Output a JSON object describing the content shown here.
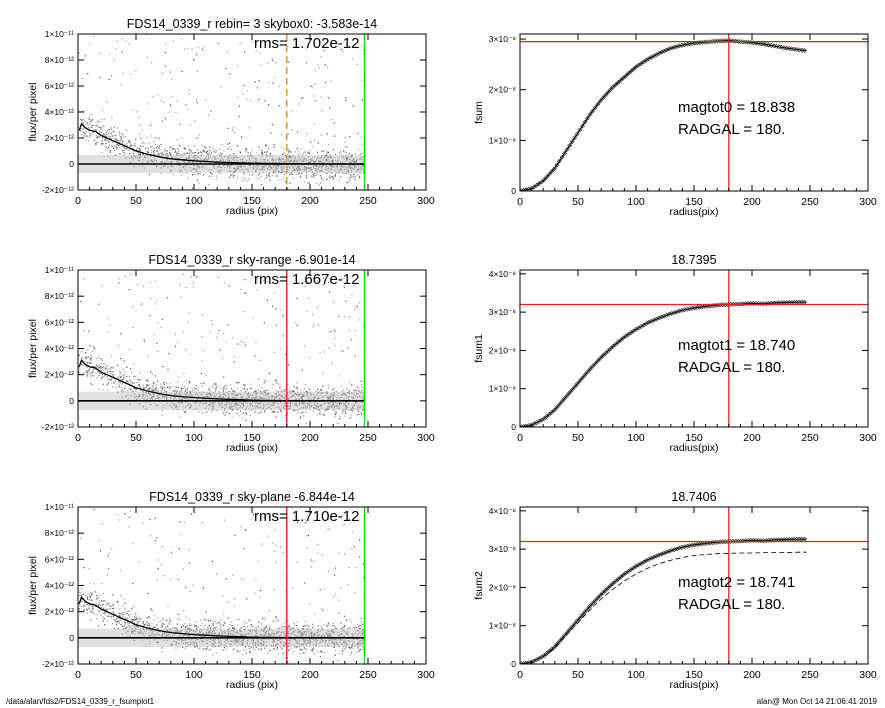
{
  "footer": {
    "left": "/data/alan/fds2/FDS14_0339_r_fsumplot1",
    "right": "alan@  Mon Oct 14 21:06:41 2019"
  },
  "chart_data": [
    {
      "type": "scatter",
      "title": "FDS14_0339_r rebin= 3    skybox0: -3.583e-14",
      "annotation": "rms= 1.702e-12",
      "xlabel": "radius (pix)",
      "ylabel": "flux/per pixel",
      "xlim": [
        0,
        300
      ],
      "ylim": [
        -2e-12,
        1e-11
      ],
      "xticks": [
        "0",
        "50",
        "100",
        "150",
        "200",
        "250",
        "300"
      ],
      "yticks": [
        "1×10⁻¹¹",
        "8×10⁻¹²",
        "6×10⁻¹²",
        "4×10⁻¹²",
        "2×10⁻¹²",
        "0",
        "-2×10⁻¹²"
      ],
      "vlines": [
        {
          "x": 180,
          "color": "#e8902a",
          "style": "dashed"
        },
        {
          "x": 247,
          "color": "#22cc22",
          "style": "solid"
        }
      ],
      "profile": [
        [
          1,
          2.6e-12
        ],
        [
          3,
          3.1e-12
        ],
        [
          6,
          2.8e-12
        ],
        [
          10,
          2.6e-12
        ],
        [
          15,
          2.5e-12
        ],
        [
          20,
          2.2e-12
        ],
        [
          30,
          1.8e-12
        ],
        [
          40,
          1.4e-12
        ],
        [
          50,
          1e-12
        ],
        [
          60,
          7.5e-13
        ],
        [
          70,
          5.5e-13
        ],
        [
          80,
          4e-13
        ],
        [
          100,
          2.5e-13
        ],
        [
          120,
          1.5e-13
        ],
        [
          150,
          5e-14
        ],
        [
          180,
          2e-14
        ],
        [
          220,
          0.0
        ],
        [
          247,
          0.0
        ]
      ]
    },
    {
      "type": "line",
      "title": "",
      "annotation_lines": [
        "magtot0 =  18.838",
        "RADGAL =    180."
      ],
      "xlabel": "radius(pix)",
      "ylabel": "fsum",
      "xlim": [
        0,
        300
      ],
      "ylim": [
        0,
        3.1e-08
      ],
      "xticks": [
        "0",
        "50",
        "100",
        "150",
        "200",
        "250",
        "300"
      ],
      "yticks": [
        "3×10⁻⁸",
        "2×10⁻⁸",
        "1×10⁻⁸",
        "0"
      ],
      "hline": 2.95e-08,
      "vline": 180,
      "curve": [
        [
          0,
          0
        ],
        [
          10,
          5e-10
        ],
        [
          20,
          2e-09
        ],
        [
          30,
          4.5e-09
        ],
        [
          40,
          8e-09
        ],
        [
          50,
          1.15e-08
        ],
        [
          60,
          1.5e-08
        ],
        [
          70,
          1.8e-08
        ],
        [
          80,
          2.05e-08
        ],
        [
          90,
          2.25e-08
        ],
        [
          100,
          2.45e-08
        ],
        [
          110,
          2.6e-08
        ],
        [
          120,
          2.72e-08
        ],
        [
          130,
          2.82e-08
        ],
        [
          140,
          2.88e-08
        ],
        [
          150,
          2.92e-08
        ],
        [
          160,
          2.94e-08
        ],
        [
          170,
          2.96e-08
        ],
        [
          180,
          2.97e-08
        ],
        [
          190,
          2.95e-08
        ],
        [
          200,
          2.93e-08
        ],
        [
          210,
          2.9e-08
        ],
        [
          220,
          2.86e-08
        ],
        [
          230,
          2.82e-08
        ],
        [
          240,
          2.79e-08
        ],
        [
          247,
          2.77e-08
        ]
      ]
    },
    {
      "type": "scatter",
      "title": "FDS14_0339_r sky-range -6.901e-14",
      "annotation": "rms= 1.667e-12",
      "xlabel": "radius (pix)",
      "ylabel": "flux/per pixel",
      "xlim": [
        0,
        300
      ],
      "ylim": [
        -2e-12,
        1e-11
      ],
      "xticks": [
        "0",
        "50",
        "100",
        "150",
        "200",
        "250",
        "300"
      ],
      "yticks": [
        "1×10⁻¹¹",
        "8×10⁻¹²",
        "6×10⁻¹²",
        "4×10⁻¹²",
        "2×10⁻¹²",
        "0",
        "-2×10⁻¹²"
      ],
      "vlines": [
        {
          "x": 180,
          "color": "#dd2222",
          "style": "solid"
        },
        {
          "x": 247,
          "color": "#22cc22",
          "style": "solid"
        }
      ],
      "profile": [
        [
          1,
          2.6e-12
        ],
        [
          3,
          3.1e-12
        ],
        [
          6,
          2.8e-12
        ],
        [
          10,
          2.6e-12
        ],
        [
          15,
          2.5e-12
        ],
        [
          20,
          2.2e-12
        ],
        [
          30,
          1.8e-12
        ],
        [
          40,
          1.4e-12
        ],
        [
          50,
          1e-12
        ],
        [
          60,
          7.5e-13
        ],
        [
          70,
          5.5e-13
        ],
        [
          80,
          4e-13
        ],
        [
          100,
          2.5e-13
        ],
        [
          120,
          1.5e-13
        ],
        [
          150,
          5e-14
        ],
        [
          180,
          2e-14
        ],
        [
          220,
          0.0
        ],
        [
          247,
          0.0
        ]
      ]
    },
    {
      "type": "line",
      "title": "18.7395",
      "annotation_lines": [
        "magtot1 =  18.740",
        "RADGAL =    180."
      ],
      "xlabel": "radius(pix)",
      "ylabel": "fsum1",
      "xlim": [
        0,
        300
      ],
      "ylim": [
        0,
        4.1e-08
      ],
      "xticks": [
        "0",
        "50",
        "100",
        "150",
        "200",
        "250",
        "300"
      ],
      "yticks": [
        "4×10⁻⁸",
        "3×10⁻⁸",
        "2×10⁻⁸",
        "1×10⁻⁸",
        "0"
      ],
      "hline": 3.2e-08,
      "vline": 180,
      "curve": [
        [
          0,
          0
        ],
        [
          10,
          5e-10
        ],
        [
          20,
          2e-09
        ],
        [
          30,
          4.5e-09
        ],
        [
          40,
          8e-09
        ],
        [
          50,
          1.15e-08
        ],
        [
          60,
          1.5e-08
        ],
        [
          70,
          1.82e-08
        ],
        [
          80,
          2.1e-08
        ],
        [
          90,
          2.35e-08
        ],
        [
          100,
          2.55e-08
        ],
        [
          110,
          2.72e-08
        ],
        [
          120,
          2.85e-08
        ],
        [
          130,
          2.96e-08
        ],
        [
          140,
          3.05e-08
        ],
        [
          150,
          3.11e-08
        ],
        [
          160,
          3.15e-08
        ],
        [
          170,
          3.18e-08
        ],
        [
          180,
          3.2e-08
        ],
        [
          190,
          3.21e-08
        ],
        [
          200,
          3.23e-08
        ],
        [
          210,
          3.22e-08
        ],
        [
          220,
          3.24e-08
        ],
        [
          230,
          3.25e-08
        ],
        [
          240,
          3.26e-08
        ],
        [
          247,
          3.26e-08
        ]
      ]
    },
    {
      "type": "scatter",
      "title": "FDS14_0339_r sky-plane -6.844e-14",
      "annotation": "rms= 1.710e-12",
      "xlabel": "radius (pix)",
      "ylabel": "flux/per pixel",
      "xlim": [
        0,
        300
      ],
      "ylim": [
        -2e-12,
        1e-11
      ],
      "xticks": [
        "0",
        "50",
        "100",
        "150",
        "200",
        "250",
        "300"
      ],
      "yticks": [
        "1×10⁻¹¹",
        "8×10⁻¹²",
        "6×10⁻¹²",
        "4×10⁻¹²",
        "2×10⁻¹²",
        "0",
        "-2×10⁻¹²"
      ],
      "vlines": [
        {
          "x": 180,
          "color": "#dd2222",
          "style": "solid"
        },
        {
          "x": 247,
          "color": "#22cc22",
          "style": "solid"
        }
      ],
      "profile": [
        [
          1,
          2.6e-12
        ],
        [
          3,
          3.1e-12
        ],
        [
          6,
          2.8e-12
        ],
        [
          10,
          2.6e-12
        ],
        [
          15,
          2.5e-12
        ],
        [
          20,
          2.2e-12
        ],
        [
          30,
          1.8e-12
        ],
        [
          40,
          1.4e-12
        ],
        [
          50,
          1e-12
        ],
        [
          60,
          7.5e-13
        ],
        [
          70,
          5.5e-13
        ],
        [
          80,
          4e-13
        ],
        [
          100,
          2.5e-13
        ],
        [
          120,
          1.5e-13
        ],
        [
          150,
          5e-14
        ],
        [
          180,
          2e-14
        ],
        [
          220,
          0.0
        ],
        [
          247,
          0.0
        ]
      ]
    },
    {
      "type": "line",
      "title": "18.7406",
      "annotation_lines": [
        "magtot2 =  18.741",
        "RADGAL =    180."
      ],
      "xlabel": "radius(pix)",
      "ylabel": "fsum2",
      "xlim": [
        0,
        300
      ],
      "ylim": [
        0,
        4.1e-08
      ],
      "xticks": [
        "0",
        "50",
        "100",
        "150",
        "200",
        "250",
        "300"
      ],
      "yticks": [
        "4×10⁻⁸",
        "3×10⁻⁸",
        "2×10⁻⁸",
        "1×10⁻⁸",
        "0"
      ],
      "hline": 3.2e-08,
      "vline": 180,
      "curve": [
        [
          0,
          0
        ],
        [
          10,
          5e-10
        ],
        [
          20,
          2e-09
        ],
        [
          30,
          4.5e-09
        ],
        [
          40,
          8e-09
        ],
        [
          50,
          1.15e-08
        ],
        [
          60,
          1.5e-08
        ],
        [
          70,
          1.82e-08
        ],
        [
          80,
          2.1e-08
        ],
        [
          90,
          2.35e-08
        ],
        [
          100,
          2.55e-08
        ],
        [
          110,
          2.72e-08
        ],
        [
          120,
          2.85e-08
        ],
        [
          130,
          2.96e-08
        ],
        [
          140,
          3.05e-08
        ],
        [
          150,
          3.11e-08
        ],
        [
          160,
          3.15e-08
        ],
        [
          170,
          3.18e-08
        ],
        [
          180,
          3.2e-08
        ],
        [
          190,
          3.21e-08
        ],
        [
          200,
          3.23e-08
        ],
        [
          210,
          3.22e-08
        ],
        [
          220,
          3.24e-08
        ],
        [
          230,
          3.25e-08
        ],
        [
          240,
          3.26e-08
        ],
        [
          247,
          3.26e-08
        ]
      ],
      "curve_dashed": [
        [
          0,
          0
        ],
        [
          10,
          5e-10
        ],
        [
          20,
          1.9e-09
        ],
        [
          30,
          4.2e-09
        ],
        [
          40,
          7.5e-09
        ],
        [
          50,
          1.08e-08
        ],
        [
          60,
          1.4e-08
        ],
        [
          70,
          1.7e-08
        ],
        [
          80,
          1.95e-08
        ],
        [
          90,
          2.17e-08
        ],
        [
          100,
          2.35e-08
        ],
        [
          110,
          2.5e-08
        ],
        [
          120,
          2.62e-08
        ],
        [
          130,
          2.71e-08
        ],
        [
          140,
          2.78e-08
        ],
        [
          150,
          2.83e-08
        ],
        [
          160,
          2.86e-08
        ],
        [
          170,
          2.88e-08
        ],
        [
          180,
          2.89e-08
        ],
        [
          190,
          2.9e-08
        ],
        [
          200,
          2.9e-08
        ],
        [
          210,
          2.91e-08
        ],
        [
          220,
          2.91e-08
        ],
        [
          230,
          2.91e-08
        ],
        [
          240,
          2.92e-08
        ],
        [
          247,
          2.92e-08
        ]
      ]
    }
  ]
}
